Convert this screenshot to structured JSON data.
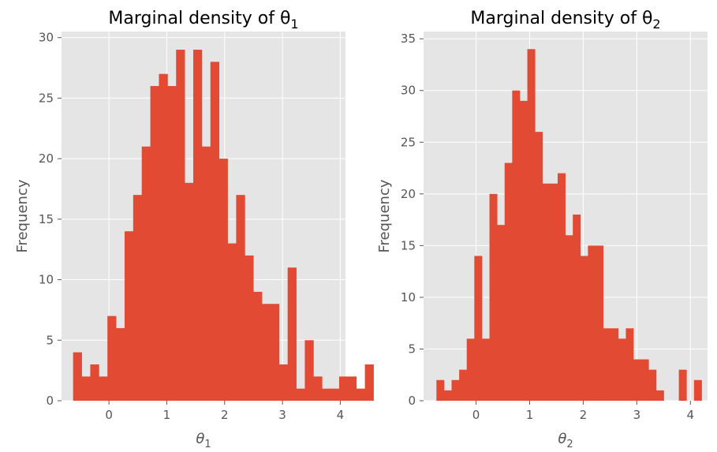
{
  "chart_data": [
    {
      "type": "bar",
      "title": "Marginal density of θ",
      "title_sub": "1",
      "xlabel": "θ",
      "xlabel_sub": "1",
      "ylabel": "Frequency",
      "bar_color": "#e24a33",
      "background": "#e5e5e5",
      "grid": true,
      "xlim": [
        -0.82,
        4.09
      ],
      "ylim": [
        0,
        30.5
      ],
      "xticks": [
        0,
        1,
        2,
        3,
        4
      ],
      "yticks": [
        0,
        5,
        10,
        15,
        20,
        25,
        30
      ],
      "bin_start": -0.62,
      "bin_width": 0.1484,
      "values": [
        4,
        2,
        3,
        2,
        7,
        6,
        14,
        17,
        21,
        26,
        27,
        26,
        29,
        18,
        29,
        21,
        28,
        20,
        13,
        17,
        12,
        9,
        8,
        8,
        3,
        11,
        1,
        5,
        2,
        1,
        1,
        2,
        2,
        1,
        3
      ]
    },
    {
      "type": "bar",
      "title": "Marginal density of θ",
      "title_sub": "2",
      "xlabel": "θ",
      "xlabel_sub": "2",
      "ylabel": "Frequency",
      "bar_color": "#e24a33",
      "background": "#e5e5e5",
      "grid": true,
      "xlim": [
        -0.98,
        4.32
      ],
      "ylim": [
        0,
        35.7
      ],
      "xticks": [
        0,
        1,
        2,
        3,
        4
      ],
      "yticks": [
        0,
        5,
        10,
        15,
        20,
        25,
        30,
        35
      ],
      "bin_start": -0.74,
      "bin_width": 0.1414,
      "values": [
        2,
        1,
        2,
        3,
        6,
        14,
        6,
        20,
        17,
        23,
        30,
        29,
        34,
        26,
        21,
        21,
        22,
        16,
        18,
        14,
        15,
        15,
        7,
        7,
        6,
        7,
        4,
        4,
        3,
        1,
        0,
        0,
        3,
        0,
        2
      ]
    }
  ]
}
